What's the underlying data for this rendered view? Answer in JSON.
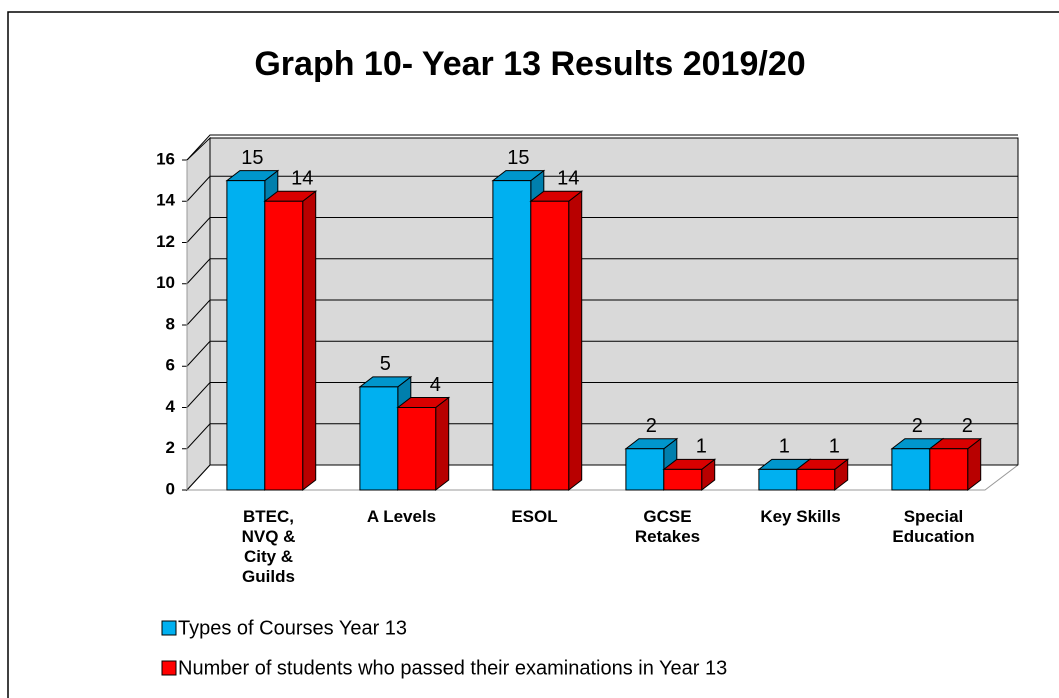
{
  "chart_data": {
    "type": "bar3d",
    "title": "Graph 10- Year 13 Results 2019/20",
    "categories": [
      "BTEC, NVQ & City & Guilds",
      "A Levels",
      "ESOL",
      "GCSE Retakes",
      "Key Skills",
      "Special Education"
    ],
    "series": [
      {
        "name": "Types of Courses Year 13",
        "color": "#00b0f0",
        "values": [
          15,
          5,
          15,
          2,
          1,
          2
        ]
      },
      {
        "name": "Number of students who passed their examinations in Year 13",
        "color": "#ff0000",
        "values": [
          14,
          4,
          14,
          1,
          1,
          2
        ]
      }
    ],
    "ylim": [
      0,
      16
    ],
    "yticks": [
      0,
      2,
      4,
      6,
      8,
      10,
      12,
      14,
      16
    ],
    "grid": true
  }
}
